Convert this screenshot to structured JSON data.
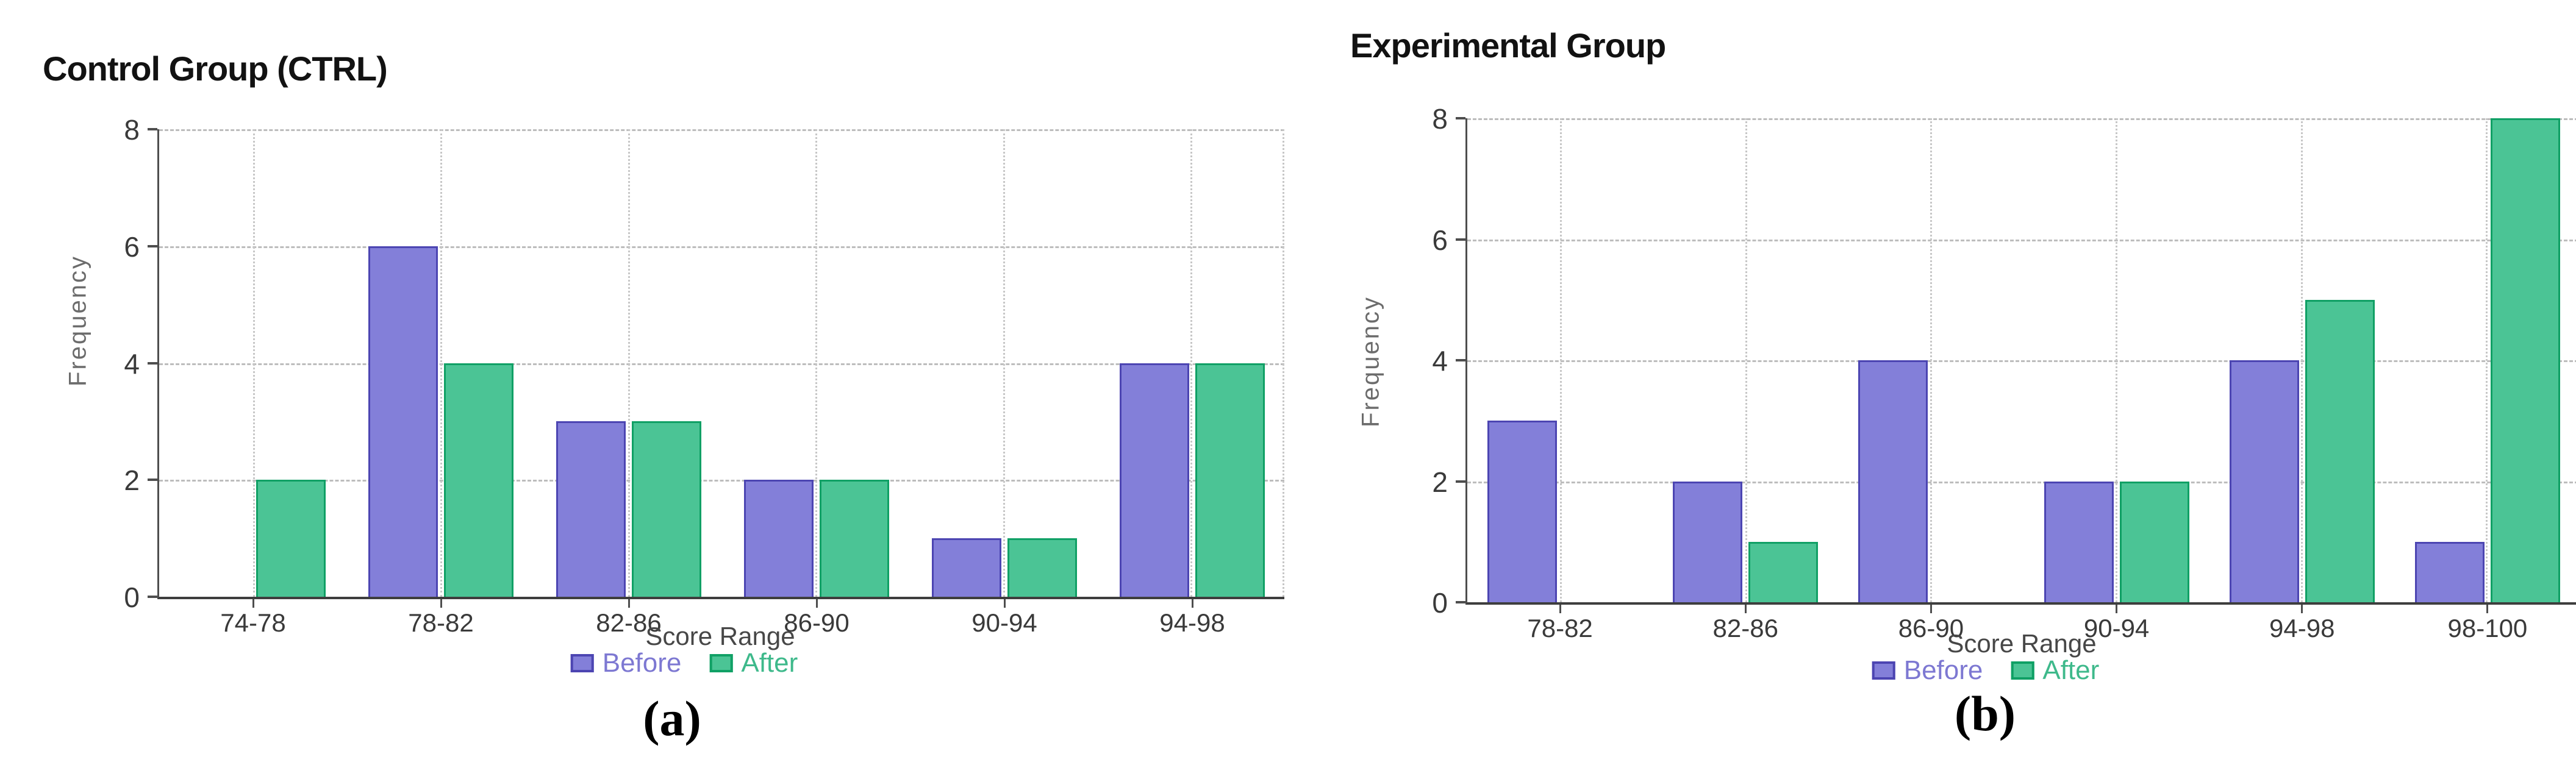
{
  "figure": {
    "panels": [
      {
        "title": "Control Group (CTRL)",
        "caption": "(a)"
      },
      {
        "title": "Experimental Group",
        "caption": "(b)"
      }
    ]
  },
  "chart_data": [
    {
      "type": "bar",
      "title": "Control Group (CTRL)",
      "categories": [
        "74-78",
        "78-82",
        "82-86",
        "86-90",
        "90-94",
        "94-98"
      ],
      "series": [
        {
          "name": "Before",
          "values": [
            0,
            6,
            3,
            2,
            1,
            4
          ]
        },
        {
          "name": "After",
          "values": [
            2,
            4,
            3,
            2,
            1,
            4
          ]
        }
      ],
      "xlabel": "Score Range",
      "ylabel": "Frequency",
      "ylim": [
        0,
        8
      ],
      "yticks": [
        0,
        2,
        4,
        6,
        8
      ],
      "grid": true,
      "legend_position": "bottom"
    },
    {
      "type": "bar",
      "title": "Experimental Group",
      "categories": [
        "78-82",
        "82-86",
        "86-90",
        "90-94",
        "94-98",
        "98-100"
      ],
      "series": [
        {
          "name": "Before",
          "values": [
            3,
            2,
            4,
            2,
            4,
            1
          ]
        },
        {
          "name": "After",
          "values": [
            0,
            1,
            0,
            2,
            5,
            8
          ]
        }
      ],
      "xlabel": "Score Range",
      "ylabel": "Frequency",
      "ylim": [
        0,
        8
      ],
      "yticks": [
        0,
        2,
        4,
        6,
        8
      ],
      "grid": true,
      "legend_position": "bottom"
    }
  ],
  "colors": {
    "before_fill": "#837FD9",
    "before_border": "#4C45B2",
    "before_text": "#7D78D2",
    "after_fill": "#4BC495",
    "after_border": "#10A065",
    "after_text": "#3EB98B",
    "grid": "#C2C2C2",
    "axis": "#4E4E4E"
  }
}
